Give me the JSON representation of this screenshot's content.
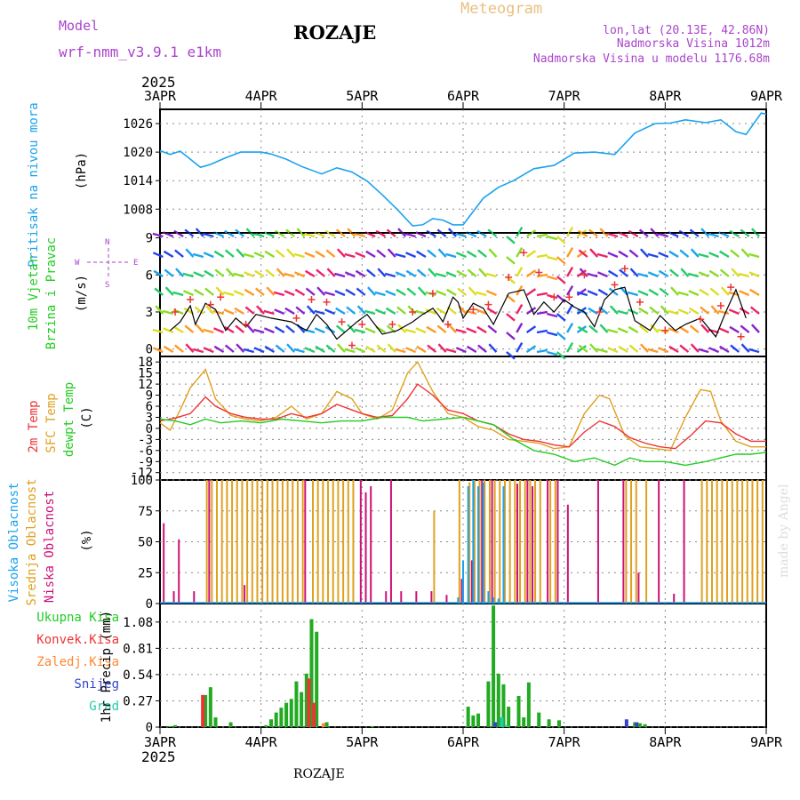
{
  "header": {
    "model_label": "Model",
    "model_name": "wrf-nmm_v3.9.1 e1km",
    "station": "ROZAJE",
    "product": "Meteogram",
    "coords": "lon,lat (20.13E, 42.86N)",
    "elevation": "Nadmorska Visina 1012m",
    "model_elevation": "Nadmorska Visina u modelu 1176.68m",
    "year_top": "2025",
    "year_bottom": "2025",
    "footer_station": "ROZAJE",
    "credit": "made by Angel"
  },
  "colors": {
    "pressure": "#1aa3ee",
    "wind_speed": "#000000",
    "wind_gust": "#ee3333",
    "temp_2m": "#ee3333",
    "temp_sfc": "#e0a020",
    "temp_dew": "#22cc22",
    "cloud_high": "#1aa3ee",
    "cloud_mid": "#e0a020",
    "cloud_low": "#cc1177",
    "precip_total": "#22aa22",
    "precip_conv": "#ee3333",
    "precip_frz": "#ff8833",
    "precip_snow": "#3344cc",
    "precip_hail": "#22ccaa",
    "label_purple": "#aa44cc",
    "label_cyan": "#1aa3ee",
    "label_green": "#22cc22",
    "label_red": "#ee3333",
    "label_orange": "#e0a020",
    "label_magenta": "#cc1177"
  },
  "chart_data": [
    {
      "type": "line",
      "title": "Pritisak na nivou mora",
      "ylabel": "(hPa)",
      "ylim": [
        1003,
        1029
      ],
      "yticks": [
        "1008",
        "1014",
        "1020",
        "1026"
      ],
      "xticks": [
        "3APR",
        "4APR",
        "5APR",
        "6APR",
        "7APR",
        "8APR",
        "9APR"
      ],
      "x_unit": "days since 3APR 00",
      "series": [
        {
          "name": "Pritisak na nivou mora",
          "x": [
            0,
            0.1,
            0.2,
            0.3,
            0.4,
            0.5,
            0.65,
            0.8,
            1.0,
            1.1,
            1.25,
            1.4,
            1.6,
            1.75,
            1.9,
            2.05,
            2.2,
            2.35,
            2.5,
            2.6,
            2.7,
            2.8,
            2.9,
            3.0,
            3.1,
            3.2,
            3.35,
            3.5,
            3.7,
            3.9,
            4.1,
            4.3,
            4.5,
            4.7,
            4.9,
            5.05,
            5.2,
            5.4,
            5.55,
            5.7,
            5.8,
            5.95,
            6.0
          ],
          "values": [
            1020.3,
            1019.5,
            1020.2,
            1018.5,
            1016.8,
            1017.4,
            1018.8,
            1020.0,
            1020.0,
            1019.6,
            1018.5,
            1017.0,
            1015.4,
            1016.7,
            1015.8,
            1013.9,
            1011.0,
            1007.9,
            1004.5,
            1004.7,
            1006.0,
            1005.7,
            1004.7,
            1004.7,
            1007.5,
            1010.3,
            1012.6,
            1014.0,
            1016.5,
            1017.2,
            1019.8,
            1020.0,
            1019.5,
            1024.0,
            1026.0,
            1026.1,
            1026.8,
            1026.2,
            1026.8,
            1024.3,
            1023.7,
            1028.2,
            1028.0
          ]
        }
      ]
    },
    {
      "type": "line",
      "title": "10m Vjetar Brzina i Pravac",
      "ylabel": "(m/s)",
      "ylim": [
        -0.6,
        9.4
      ],
      "yticks": [
        "0",
        "3",
        "6",
        "9"
      ],
      "legend_compass": [
        "N",
        "W",
        "E",
        "S"
      ],
      "series": [
        {
          "name": "Brzina",
          "x": [
            0.1,
            0.2,
            0.3,
            0.35,
            0.45,
            0.55,
            0.65,
            0.75,
            0.85,
            0.95,
            1.1,
            1.3,
            1.45,
            1.55,
            1.65,
            1.75,
            1.85,
            1.95,
            2.05,
            2.2,
            2.35,
            2.5,
            2.6,
            2.7,
            2.75,
            2.8,
            2.9,
            2.95,
            3.0,
            3.1,
            3.2,
            3.3,
            3.45,
            3.6,
            3.7,
            3.8,
            3.9,
            4.0,
            4.1,
            4.2,
            4.3,
            4.4,
            4.5,
            4.6,
            4.7,
            4.85,
            4.95,
            5.1,
            5.2,
            5.35,
            5.5,
            5.6,
            5.7,
            5.8
          ],
          "values": [
            1.5,
            2.2,
            3.5,
            2.0,
            3.7,
            3.2,
            1.5,
            2.5,
            1.8,
            2.8,
            2.5,
            2.2,
            1.5,
            2.8,
            2.0,
            0.8,
            1.5,
            2.2,
            2.8,
            1.2,
            1.5,
            2.2,
            2.8,
            3.3,
            2.8,
            2.2,
            4.2,
            3.8,
            2.5,
            3.7,
            3.3,
            2.0,
            4.5,
            4.8,
            2.8,
            3.8,
            3.0,
            4.0,
            3.4,
            3.0,
            1.8,
            4.0,
            4.8,
            5.0,
            2.3,
            1.5,
            2.7,
            1.5,
            2.0,
            2.5,
            1.0,
            3.0,
            4.8,
            2.5
          ]
        },
        {
          "name": "Udari",
          "x": [
            0.15,
            0.3,
            0.5,
            0.6,
            0.85,
            1.35,
            1.5,
            1.65,
            1.8,
            1.9,
            2.0,
            2.3,
            2.5,
            2.7,
            2.85,
            3.1,
            3.25,
            3.45,
            3.6,
            3.75,
            3.9,
            4.05,
            4.2,
            4.35,
            4.5,
            4.6,
            4.75,
            5.0,
            5.35,
            5.55,
            5.65,
            5.75
          ],
          "values": [
            3.0,
            4.0,
            3.6,
            4.2,
            2.0,
            2.5,
            4.0,
            3.8,
            2.2,
            0.3,
            2.0,
            2.0,
            3.0,
            4.5,
            2.0,
            3.2,
            3.6,
            5.8,
            7.8,
            6.2,
            4.2,
            4.2,
            6.0,
            3.0,
            5.2,
            6.5,
            3.8,
            1.5,
            2.4,
            3.5,
            5.0,
            1.0
          ]
        }
      ]
    },
    {
      "type": "line",
      "title": "2m Temp / SFC Temp / dewpt Temp",
      "ylabel": "(C)",
      "ylim": [
        -14,
        19.5
      ],
      "yticks": [
        "-12",
        "-9",
        "-6",
        "-3",
        "0",
        "3",
        "6",
        "9",
        "12",
        "15",
        "18"
      ],
      "series": [
        {
          "name": "2m Temp",
          "x": [
            0,
            0.15,
            0.3,
            0.45,
            0.55,
            0.7,
            0.85,
            1.0,
            1.15,
            1.3,
            1.45,
            1.6,
            1.75,
            1.9,
            2.0,
            2.15,
            2.3,
            2.45,
            2.55,
            2.7,
            2.85,
            3.0,
            3.15,
            3.3,
            3.45,
            3.6,
            3.75,
            3.9,
            4.05,
            4.2,
            4.35,
            4.5,
            4.65,
            4.8,
            4.95,
            5.1,
            5.25,
            5.4,
            5.55,
            5.7,
            5.85,
            6.0
          ],
          "values": [
            2,
            2.8,
            4,
            8.5,
            6,
            4,
            3,
            2.5,
            2.5,
            4,
            3,
            4,
            6.5,
            5,
            4,
            3,
            3.5,
            8,
            12,
            9,
            5,
            4,
            2,
            1,
            -1.5,
            -3,
            -3.5,
            -4.5,
            -5,
            -1,
            2,
            0.5,
            -2.5,
            -4,
            -5,
            -5.5,
            -2,
            2,
            1.5,
            -1.5,
            -3.5,
            -3.5
          ]
        },
        {
          "name": "SFC Temp",
          "x": [
            0,
            0.1,
            0.2,
            0.3,
            0.45,
            0.55,
            0.7,
            0.85,
            1.0,
            1.15,
            1.3,
            1.45,
            1.6,
            1.75,
            1.9,
            2.0,
            2.15,
            2.3,
            2.45,
            2.55,
            2.7,
            2.85,
            3.0,
            3.15,
            3.3,
            3.45,
            3.6,
            3.75,
            3.9,
            4.05,
            4.2,
            4.35,
            4.45,
            4.6,
            4.75,
            4.9,
            5.05,
            5.2,
            5.35,
            5.45,
            5.55,
            5.7,
            5.85,
            6.0
          ],
          "values": [
            1.5,
            -0.5,
            5,
            11,
            16,
            8,
            3.5,
            2.5,
            2,
            3,
            6,
            2.5,
            4,
            10,
            8,
            4,
            2.5,
            5,
            15,
            18,
            10,
            4,
            3,
            0.5,
            -0.5,
            -3,
            -3.5,
            -4,
            -5.5,
            -5,
            4,
            9,
            8,
            -2,
            -5,
            -5.5,
            -6,
            3,
            10.5,
            10,
            2,
            -3.5,
            -5,
            -5
          ]
        },
        {
          "name": "dewpt Temp",
          "x": [
            0,
            0.15,
            0.3,
            0.45,
            0.6,
            0.8,
            1.0,
            1.2,
            1.4,
            1.6,
            1.8,
            2.0,
            2.2,
            2.45,
            2.6,
            2.8,
            3.0,
            3.15,
            3.3,
            3.5,
            3.7,
            3.9,
            4.1,
            4.3,
            4.5,
            4.65,
            4.8,
            5.0,
            5.2,
            5.4,
            5.55,
            5.7,
            5.85,
            6.0
          ],
          "values": [
            2.5,
            2,
            1,
            2.5,
            1.5,
            2,
            1.5,
            2.5,
            2,
            1.5,
            2,
            2,
            3,
            3,
            2,
            2.5,
            3,
            2,
            1,
            -3,
            -6,
            -7,
            -9,
            -8,
            -10,
            -8,
            -9,
            -9,
            -10,
            -9,
            -8,
            -7,
            -7,
            -6.5
          ]
        }
      ]
    },
    {
      "type": "bar",
      "title": "Visoka / Srednja / Niska Oblacnost",
      "ylabel": "(%)",
      "ylim": [
        0,
        100
      ],
      "yticks": [
        "0",
        "25",
        "50",
        "75",
        "100"
      ],
      "series": [
        {
          "name": "Niska Oblacnost",
          "x": [
            0.05,
            0.15,
            0.2,
            0.35,
            0.5,
            0.85,
            1.45,
            2.0,
            2.05,
            2.1,
            2.25,
            2.3,
            2.4,
            2.55,
            2.7,
            2.85,
            3.0,
            3.1,
            3.2,
            3.3,
            3.55,
            3.65,
            3.7,
            3.85,
            3.95,
            4.05,
            4.35,
            4.6,
            4.75,
            4.95,
            5.1,
            5.2
          ],
          "values": [
            65,
            10,
            52,
            10,
            100,
            15,
            100,
            100,
            90,
            95,
            10,
            100,
            10,
            10,
            10,
            7,
            20,
            35,
            100,
            100,
            97,
            100,
            95,
            100,
            100,
            80,
            100,
            100,
            25,
            100,
            8,
            100
          ]
        },
        {
          "name": "Srednja Oblacnost",
          "x": [
            0.45,
            0.5,
            0.55,
            0.6,
            0.65,
            0.7,
            0.75,
            0.8,
            0.85,
            0.9,
            0.95,
            1.0,
            1.05,
            1.1,
            1.15,
            1.2,
            1.25,
            1.3,
            1.35,
            1.4,
            1.5,
            1.55,
            1.6,
            1.65,
            1.7,
            1.75,
            1.8,
            1.85,
            1.9,
            2.7,
            2.95,
            3.05,
            3.1,
            3.15,
            3.2,
            3.25,
            3.3,
            3.35,
            3.4,
            3.45,
            3.5,
            3.55,
            3.6,
            3.65,
            3.7,
            3.75,
            3.85,
            3.9,
            4.6,
            4.65,
            4.7,
            4.8,
            5.35,
            5.4,
            5.45,
            5.5,
            5.55,
            5.6,
            5.65,
            5.7,
            5.75,
            5.8,
            5.85,
            5.9,
            5.95
          ],
          "values": [
            100,
            100,
            100,
            100,
            100,
            100,
            100,
            100,
            100,
            100,
            100,
            100,
            100,
            100,
            100,
            100,
            100,
            100,
            100,
            100,
            100,
            100,
            100,
            100,
            100,
            100,
            100,
            100,
            100,
            75,
            100,
            98,
            100,
            100,
            100,
            100,
            100,
            100,
            100,
            100,
            100,
            100,
            100,
            100,
            100,
            100,
            100,
            100,
            100,
            100,
            100,
            100,
            100,
            100,
            100,
            100,
            100,
            100,
            100,
            100,
            100,
            100,
            100,
            100,
            100
          ]
        },
        {
          "name": "Visoka Oblacnost",
          "x": [
            2.95,
            3.0,
            3.05,
            3.1,
            3.15,
            3.2,
            3.25,
            3.3,
            3.35,
            3.4
          ],
          "values": [
            5,
            35,
            95,
            100,
            95,
            98,
            10,
            5,
            4,
            95
          ]
        }
      ]
    },
    {
      "type": "bar",
      "title": "1hr Precip",
      "ylabel": "1hr Precip (mm)",
      "ylim": [
        0,
        1.27
      ],
      "yticks": [
        "0",
        "0.27",
        "0.54",
        "0.81",
        "1.08"
      ],
      "xticks": [
        "3APR",
        "4APR",
        "5APR",
        "6APR",
        "7APR",
        "8APR",
        "9APR"
      ],
      "series": [
        {
          "name": "Ukupna Kisa",
          "x": [
            0.1,
            0.15,
            0.45,
            0.5,
            0.55,
            0.7,
            1.05,
            1.1,
            1.15,
            1.2,
            1.25,
            1.3,
            1.35,
            1.4,
            1.45,
            1.5,
            1.55,
            1.65,
            2.1,
            3.05,
            3.1,
            3.15,
            3.25,
            3.3,
            3.35,
            3.4,
            3.45,
            3.55,
            3.6,
            3.65,
            3.75,
            3.85,
            3.95,
            4.7,
            4.75,
            4.8
          ],
          "values": [
            0.01,
            0.02,
            0.33,
            0.41,
            0.1,
            0.05,
            0.02,
            0.08,
            0.15,
            0.2,
            0.25,
            0.29,
            0.47,
            0.36,
            0.55,
            1.11,
            0.98,
            0.05,
            0.01,
            0.21,
            0.12,
            0.14,
            0.47,
            1.25,
            0.55,
            0.44,
            0.21,
            0.32,
            0.1,
            0.46,
            0.15,
            0.08,
            0.07,
            0.05,
            0.04,
            0.03
          ]
        },
        {
          "name": "Konvek.Kisa",
          "x": [
            0.45,
            1.5,
            1.55
          ],
          "values": [
            0.33,
            0.5,
            0.25
          ]
        },
        {
          "name": "Zaledj.Kisa",
          "x": [
            1.6
          ],
          "values": [
            0.04
          ]
        },
        {
          "name": "Snijeg",
          "x": [
            3.3,
            4.6,
            4.7
          ],
          "values": [
            0.05,
            0.08,
            0.05
          ]
        },
        {
          "name": "Grad",
          "x": [
            3.4,
            3.45
          ],
          "values": [
            0.1,
            0.02
          ]
        }
      ]
    }
  ],
  "panel_labels": {
    "pressure": [
      "Pritisak na nivou mora"
    ],
    "wind": [
      "10m Vjetar",
      "Brzina i Pravac"
    ],
    "temp": [
      "2m Temp",
      "SFC Temp",
      "dewpt Temp"
    ],
    "cloud": [
      "Visoka Oblacnost",
      "Srednja Oblacnost",
      "Niska Oblacnost"
    ],
    "precip_legend": [
      "Ukupna Kisa",
      "Konvek.Kisa",
      "Zaledj.Kisa",
      "Snijeg",
      "Grad"
    ]
  }
}
